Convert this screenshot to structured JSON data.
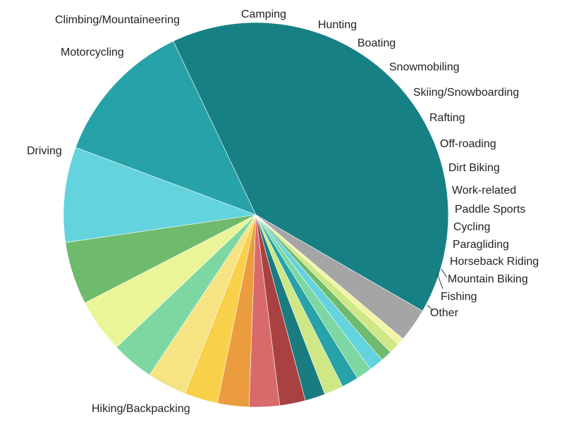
{
  "chart_data": {
    "type": "pie",
    "title": "",
    "slices": [
      {
        "label": "Hiking/Backpacking",
        "value": 42.9,
        "color": "#178085"
      },
      {
        "label": "Driving",
        "value": 13.0,
        "color": "#26a2a8"
      },
      {
        "label": "Motorcycling",
        "value": 8.5,
        "color": "#63d3dd"
      },
      {
        "label": "Climbing/Mountaineering",
        "value": 5.6,
        "color": "#70ba6e"
      },
      {
        "label": "Camping",
        "value": 4.8,
        "color": "#eaf598"
      },
      {
        "label": "Hunting",
        "value": 3.8,
        "color": "#7dd7a2"
      },
      {
        "label": "Boating",
        "value": 3.5,
        "color": "#f6e384"
      },
      {
        "label": "Snowmobiling",
        "value": 3.0,
        "color": "#f8d04a"
      },
      {
        "label": "Skiing/Snowboarding",
        "value": 2.8,
        "color": "#eb9c3e"
      },
      {
        "label": "Rafting",
        "value": 2.7,
        "color": "#d86a6b"
      },
      {
        "label": "Off-roading",
        "value": 2.3,
        "color": "#a94143"
      },
      {
        "label": "Dirt Biking",
        "value": 1.8,
        "color": "#1a7b81"
      },
      {
        "label": "Work-related",
        "value": 1.7,
        "color": "#cfe785"
      },
      {
        "label": "Paddle Sports",
        "value": 1.5,
        "color": "#26a2a8"
      },
      {
        "label": "Cycling",
        "value": 1.4,
        "color": "#7dd7a2"
      },
      {
        "label": "Paragliding",
        "value": 1.3,
        "color": "#63d3dd"
      },
      {
        "label": "Horseback Riding",
        "value": 1.0,
        "color": "#70ba6e"
      },
      {
        "label": "Mountain Biking",
        "value": 1.0,
        "color": "#cfe785"
      },
      {
        "label": "Fishing",
        "value": 0.6,
        "color": "#f3f4a4"
      },
      {
        "label": "Other",
        "value": 3.0,
        "color": "#a5a5a5"
      }
    ]
  }
}
